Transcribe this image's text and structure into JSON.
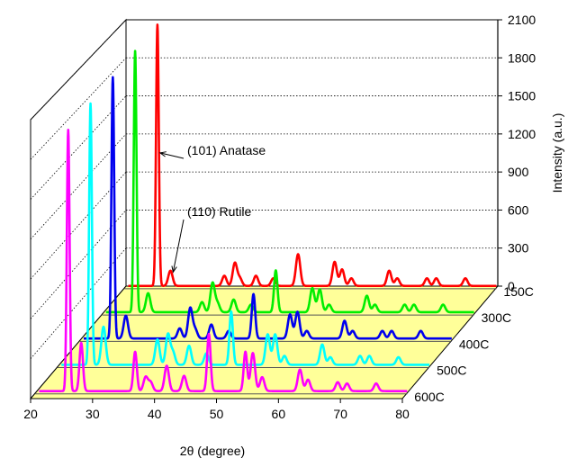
{
  "chart_data": {
    "type": "line",
    "subtype": "3d-waterfall",
    "title": "",
    "xlabel": "2θ (degree)",
    "zlabel": "Intensity (a.u.)",
    "x_ticks": [
      "20",
      "30",
      "40",
      "50",
      "60",
      "70",
      "80"
    ],
    "xlim": [
      20,
      80
    ],
    "z_ticks": [
      "0",
      "300",
      "600",
      "900",
      "1200",
      "1500",
      "1800",
      "2100"
    ],
    "zlim": [
      0,
      2100
    ],
    "grid": true,
    "backplane_color": "#ffffff",
    "floor_color": "#ffff99",
    "series": [
      {
        "name": "150C",
        "color": "#ff0000",
        "peaks": [
          {
            "x": 25.3,
            "y": 2060
          },
          {
            "x": 27.4,
            "y": 120
          },
          {
            "x": 36.1,
            "y": 80
          },
          {
            "x": 37.8,
            "y": 180
          },
          {
            "x": 38.6,
            "y": 60
          },
          {
            "x": 41.2,
            "y": 80
          },
          {
            "x": 44.0,
            "y": 60
          },
          {
            "x": 48.0,
            "y": 250
          },
          {
            "x": 53.9,
            "y": 190
          },
          {
            "x": 55.1,
            "y": 130
          },
          {
            "x": 56.6,
            "y": 60
          },
          {
            "x": 62.7,
            "y": 120
          },
          {
            "x": 64.0,
            "y": 60
          },
          {
            "x": 68.8,
            "y": 60
          },
          {
            "x": 70.3,
            "y": 60
          },
          {
            "x": 75.0,
            "y": 60
          }
        ]
      },
      {
        "name": "300C",
        "color": "#00ee00",
        "peaks": [
          {
            "x": 25.3,
            "y": 2060
          },
          {
            "x": 27.4,
            "y": 150
          },
          {
            "x": 36.1,
            "y": 80
          },
          {
            "x": 37.8,
            "y": 230
          },
          {
            "x": 38.6,
            "y": 70
          },
          {
            "x": 41.2,
            "y": 100
          },
          {
            "x": 44.0,
            "y": 60
          },
          {
            "x": 48.0,
            "y": 330
          },
          {
            "x": 53.9,
            "y": 190
          },
          {
            "x": 55.1,
            "y": 180
          },
          {
            "x": 56.6,
            "y": 60
          },
          {
            "x": 62.7,
            "y": 130
          },
          {
            "x": 64.0,
            "y": 60
          },
          {
            "x": 68.8,
            "y": 60
          },
          {
            "x": 70.3,
            "y": 60
          },
          {
            "x": 75.0,
            "y": 60
          }
        ]
      },
      {
        "name": "400C",
        "color": "#0000ee",
        "peaks": [
          {
            "x": 25.3,
            "y": 2060
          },
          {
            "x": 27.4,
            "y": 180
          },
          {
            "x": 36.1,
            "y": 80
          },
          {
            "x": 37.8,
            "y": 240
          },
          {
            "x": 38.6,
            "y": 70
          },
          {
            "x": 41.2,
            "y": 110
          },
          {
            "x": 44.0,
            "y": 60
          },
          {
            "x": 48.0,
            "y": 350
          },
          {
            "x": 53.9,
            "y": 190
          },
          {
            "x": 55.1,
            "y": 210
          },
          {
            "x": 56.6,
            "y": 60
          },
          {
            "x": 62.7,
            "y": 140
          },
          {
            "x": 64.0,
            "y": 60
          },
          {
            "x": 68.8,
            "y": 60
          },
          {
            "x": 70.3,
            "y": 60
          },
          {
            "x": 75.0,
            "y": 60
          }
        ]
      },
      {
        "name": "500C",
        "color": "#00ffff",
        "peaks": [
          {
            "x": 25.3,
            "y": 2060
          },
          {
            "x": 27.4,
            "y": 300
          },
          {
            "x": 36.1,
            "y": 200
          },
          {
            "x": 37.8,
            "y": 240
          },
          {
            "x": 38.6,
            "y": 100
          },
          {
            "x": 41.2,
            "y": 150
          },
          {
            "x": 44.0,
            "y": 90
          },
          {
            "x": 48.0,
            "y": 420
          },
          {
            "x": 53.9,
            "y": 240
          },
          {
            "x": 55.1,
            "y": 240
          },
          {
            "x": 56.6,
            "y": 70
          },
          {
            "x": 62.7,
            "y": 160
          },
          {
            "x": 64.0,
            "y": 60
          },
          {
            "x": 68.8,
            "y": 70
          },
          {
            "x": 70.3,
            "y": 70
          },
          {
            "x": 75.0,
            "y": 60
          }
        ]
      },
      {
        "name": "600C",
        "color": "#ff00ff",
        "peaks": [
          {
            "x": 25.3,
            "y": 2060
          },
          {
            "x": 27.4,
            "y": 380
          },
          {
            "x": 36.1,
            "y": 310
          },
          {
            "x": 37.8,
            "y": 110
          },
          {
            "x": 38.6,
            "y": 70
          },
          {
            "x": 41.2,
            "y": 200
          },
          {
            "x": 44.0,
            "y": 120
          },
          {
            "x": 48.0,
            "y": 450
          },
          {
            "x": 53.9,
            "y": 310
          },
          {
            "x": 55.1,
            "y": 300
          },
          {
            "x": 56.6,
            "y": 110
          },
          {
            "x": 62.7,
            "y": 170
          },
          {
            "x": 64.0,
            "y": 90
          },
          {
            "x": 68.8,
            "y": 70
          },
          {
            "x": 70.3,
            "y": 60
          },
          {
            "x": 75.0,
            "y": 60
          }
        ]
      }
    ],
    "annotations": [
      {
        "text": "(101) Anatase",
        "target_series": "150C",
        "target_x": 25.3,
        "target_y": 1050
      },
      {
        "text": "(110) Rutile",
        "target_series": "150C",
        "target_x": 27.4,
        "target_y": 110
      }
    ]
  }
}
